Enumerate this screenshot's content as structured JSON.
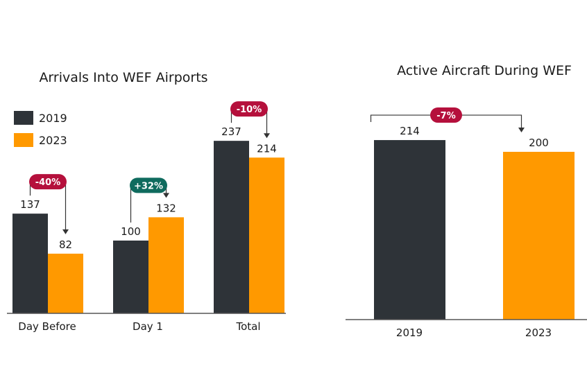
{
  "colors": {
    "series_2019": "#2e3338",
    "series_2023": "#ff9900",
    "badge_decrease": "#b5103c",
    "badge_increase": "#0f6b5e",
    "axis": "#555555"
  },
  "chart_data": [
    {
      "type": "bar",
      "title": "Arrivals Into WEF Airports",
      "categories": [
        "Day Before",
        "Day 1",
        "Total"
      ],
      "series": [
        {
          "name": "2019",
          "values": [
            137,
            100,
            237
          ]
        },
        {
          "name": "2023",
          "values": [
            82,
            132,
            214
          ]
        }
      ],
      "changes": [
        "-40%",
        "+32%",
        "-10%"
      ],
      "change_direction": [
        "decrease",
        "increase",
        "decrease"
      ],
      "legend_position": "top-left",
      "ylim": [
        0,
        260
      ],
      "grid": false
    },
    {
      "type": "bar",
      "title": "Active Aircraft During WEF",
      "categories": [
        "2019",
        "2023"
      ],
      "values": [
        214,
        200
      ],
      "changes": [
        "-7%"
      ],
      "change_direction": [
        "decrease"
      ],
      "ylim": [
        0,
        240
      ],
      "grid": false
    }
  ]
}
